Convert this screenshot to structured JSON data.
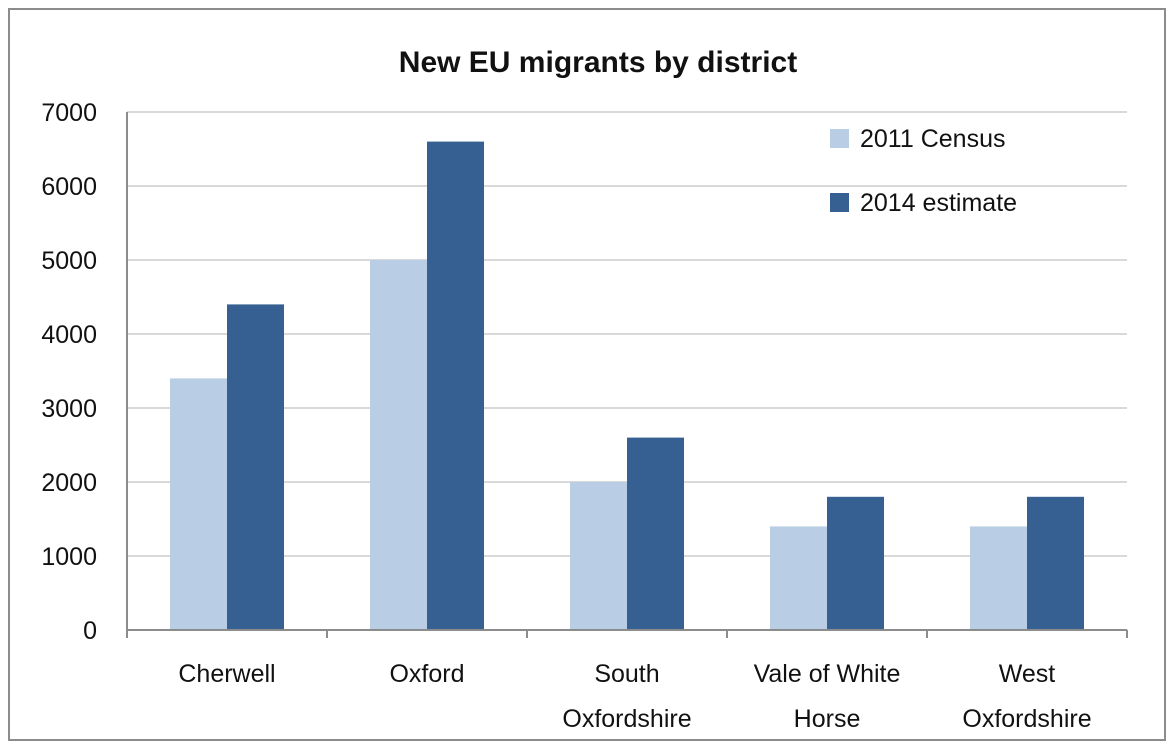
{
  "chart_data": {
    "type": "bar",
    "title": "New EU migrants by district",
    "xlabel": "",
    "ylabel": "",
    "categories": [
      [
        "Cherwell"
      ],
      [
        "Oxford"
      ],
      [
        "South",
        "Oxfordshire"
      ],
      [
        "Vale of White",
        "Horse"
      ],
      [
        "West",
        "Oxfordshire"
      ]
    ],
    "series": [
      {
        "name": "2011 Census",
        "color": "#b9cde4",
        "values": [
          3400,
          5000,
          2000,
          1400,
          1400
        ]
      },
      {
        "name": "2014 estimate",
        "color": "#366092",
        "values": [
          4400,
          6600,
          2600,
          1800,
          1800
        ]
      }
    ],
    "ylim": [
      0,
      7000
    ],
    "yticks": [
      "0",
      "1000",
      "2000",
      "3000",
      "4000",
      "5000",
      "6000",
      "7000"
    ],
    "grid": true,
    "legend_position": "top-right"
  }
}
